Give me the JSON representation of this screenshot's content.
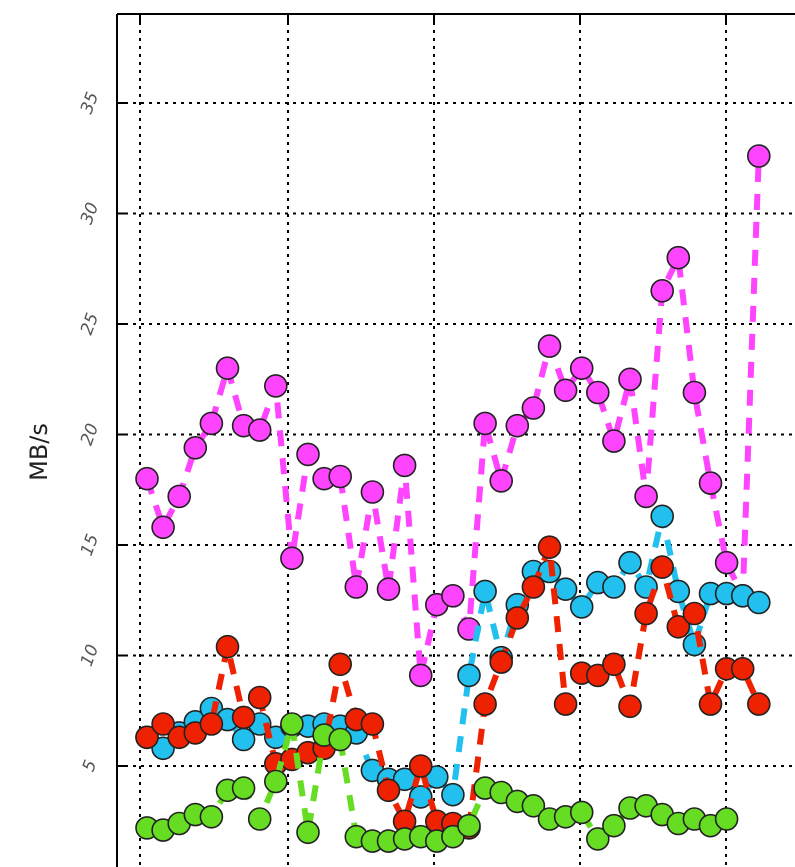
{
  "chart_data": {
    "type": "line",
    "ylabel": "MB/s",
    "yticks": [
      5,
      10,
      15,
      20,
      25,
      30,
      35
    ],
    "ylim": [
      1,
      39
    ],
    "xlim": [
      0.5,
      40.5
    ],
    "grid": true,
    "marker": "circle",
    "line_style": "dashed",
    "series": [
      {
        "color": "#ff44ff",
        "points": [
          [
            1,
            18.0
          ],
          [
            2,
            15.8
          ],
          [
            3,
            17.2
          ],
          [
            4,
            19.4
          ],
          [
            5,
            20.5
          ],
          [
            6,
            23.0
          ],
          [
            7,
            20.4
          ],
          [
            8,
            20.2
          ],
          [
            9,
            22.2
          ],
          [
            10,
            14.4
          ],
          [
            11,
            19.1
          ],
          [
            12,
            18.0
          ],
          [
            13,
            18.1
          ],
          [
            14,
            13.1
          ],
          [
            15,
            17.4
          ],
          [
            16,
            13.0
          ],
          [
            17,
            18.6
          ],
          [
            18,
            9.1
          ],
          [
            19,
            12.3
          ],
          [
            20,
            12.7
          ],
          [
            21,
            11.2
          ],
          [
            22,
            20.5
          ],
          [
            23,
            17.9
          ],
          [
            24,
            20.4
          ],
          [
            25,
            21.2
          ],
          [
            26,
            24.0
          ],
          [
            27,
            22.0
          ],
          [
            28,
            23.0
          ],
          [
            29,
            21.9
          ],
          [
            30,
            19.7
          ],
          [
            31,
            22.5
          ],
          [
            32,
            17.2
          ],
          [
            33,
            26.5
          ],
          [
            34,
            28.0
          ],
          [
            35,
            21.9
          ],
          [
            36,
            17.8
          ],
          [
            37,
            14.2
          ],
          [
            38,
            12.7
          ],
          [
            39,
            32.6
          ]
        ]
      },
      {
        "color": "#22c0ee",
        "points": [
          [
            1,
            6.3
          ],
          [
            2,
            5.8
          ],
          [
            3,
            6.5
          ],
          [
            4,
            7.0
          ],
          [
            5,
            7.6
          ],
          [
            6,
            7.1
          ],
          [
            7,
            6.2
          ],
          [
            8,
            6.9
          ],
          [
            9,
            6.3
          ],
          [
            10,
            6.8
          ],
          [
            11,
            6.8
          ],
          [
            12,
            6.9
          ],
          [
            13,
            6.8
          ],
          [
            14,
            6.5
          ],
          [
            15,
            4.8
          ],
          [
            16,
            4.4
          ],
          [
            17,
            4.4
          ],
          [
            18,
            3.6
          ],
          [
            19,
            4.5
          ],
          [
            20,
            3.7
          ],
          [
            21,
            9.1
          ],
          [
            22,
            12.9
          ],
          [
            23,
            9.9
          ],
          [
            24,
            12.3
          ],
          [
            25,
            13.8
          ],
          [
            26,
            13.8
          ],
          [
            27,
            13.0
          ],
          [
            28,
            12.2
          ],
          [
            29,
            13.3
          ],
          [
            30,
            13.1
          ],
          [
            31,
            14.2
          ],
          [
            32,
            13.1
          ],
          [
            33,
            16.3
          ],
          [
            34,
            12.9
          ],
          [
            35,
            10.5
          ],
          [
            36,
            12.8
          ],
          [
            37,
            12.8
          ],
          [
            38,
            12.7
          ],
          [
            39,
            12.4
          ]
        ]
      },
      {
        "color": "#ee2200",
        "points": [
          [
            1,
            6.3
          ],
          [
            2,
            6.9
          ],
          [
            3,
            6.3
          ],
          [
            4,
            6.5
          ],
          [
            5,
            6.9
          ],
          [
            6,
            10.4
          ],
          [
            7,
            7.2
          ],
          [
            8,
            8.1
          ],
          [
            9,
            5.1
          ],
          [
            10,
            5.3
          ],
          [
            11,
            5.6
          ],
          [
            12,
            5.8
          ],
          [
            13,
            9.6
          ],
          [
            14,
            7.1
          ],
          [
            15,
            6.9
          ],
          [
            16,
            3.9
          ],
          [
            17,
            2.5
          ],
          [
            18,
            5.0
          ],
          [
            19,
            2.5
          ],
          [
            20,
            2.4
          ],
          [
            21,
            2.2
          ],
          [
            22,
            7.8
          ],
          [
            23,
            9.7
          ],
          [
            24,
            11.7
          ],
          [
            25,
            13.1
          ],
          [
            26,
            14.9
          ],
          [
            27,
            7.8
          ],
          [
            28,
            9.2
          ],
          [
            29,
            9.1
          ],
          [
            30,
            9.6
          ],
          [
            31,
            7.7
          ],
          [
            32,
            11.9
          ],
          [
            33,
            14.0
          ],
          [
            34,
            11.3
          ],
          [
            35,
            11.9
          ],
          [
            36,
            7.8
          ],
          [
            37,
            9.4
          ],
          [
            38,
            9.4
          ],
          [
            39,
            7.8
          ]
        ]
      },
      {
        "color": "#66dd22",
        "points": [
          [
            1,
            2.2
          ],
          [
            2,
            2.1
          ],
          [
            3,
            2.4
          ],
          [
            4,
            2.8
          ],
          [
            5,
            2.7
          ],
          [
            6,
            3.9
          ],
          [
            7,
            4.0
          ],
          [
            8,
            2.6
          ],
          [
            9,
            4.3
          ],
          [
            10,
            6.9
          ],
          [
            11,
            2.0
          ],
          [
            12,
            6.4
          ],
          [
            13,
            6.2
          ],
          [
            14,
            1.8
          ],
          [
            15,
            1.6
          ],
          [
            16,
            1.6
          ],
          [
            17,
            1.7
          ],
          [
            18,
            1.8
          ],
          [
            19,
            1.6
          ],
          [
            20,
            1.8
          ],
          [
            21,
            2.3
          ],
          [
            22,
            4.0
          ],
          [
            23,
            3.8
          ],
          [
            24,
            3.4
          ],
          [
            25,
            3.2
          ],
          [
            26,
            2.6
          ],
          [
            27,
            2.7
          ],
          [
            28,
            2.9
          ],
          [
            29,
            1.7
          ],
          [
            30,
            2.3
          ],
          [
            31,
            3.1
          ],
          [
            32,
            3.2
          ],
          [
            33,
            2.8
          ],
          [
            34,
            2.4
          ],
          [
            35,
            2.6
          ],
          [
            36,
            2.3
          ],
          [
            37,
            2.6
          ]
        ]
      }
    ]
  }
}
